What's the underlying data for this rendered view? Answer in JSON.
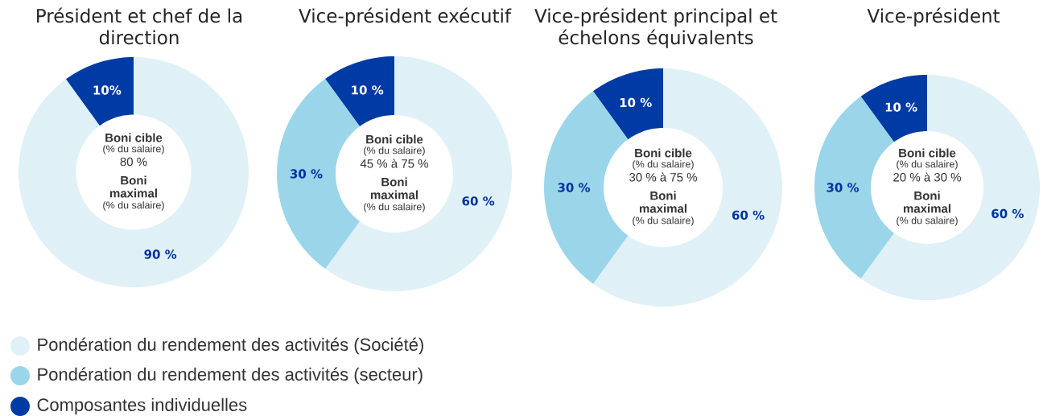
{
  "chart_data": [
    {
      "type": "donut",
      "title": "Président et chef de la direction",
      "categories": [
        "Pondération du rendement des activités (Société)",
        "Pondération du rendement des activités (secteur)",
        "Composantes individuelles"
      ],
      "values": [
        90,
        0,
        10
      ],
      "colors": [
        "#dff1f7",
        "#9bd5e9",
        "#003ba5"
      ],
      "value_labels": [
        "90 %",
        null,
        "10%"
      ],
      "annotations": [
        "Boni cible",
        "(% du salaire)",
        "80 %",
        "Boni maximal",
        "(% du salaire)"
      ],
      "legend": "bottom"
    },
    {
      "type": "donut",
      "title": "Vice-président exécutif",
      "categories": [
        null,
        null,
        null
      ],
      "values": [
        60,
        30,
        10
      ],
      "colors": [
        "#dff1f7",
        "#9bd5e9",
        "#003ba5"
      ],
      "value_labels": [
        "60 %",
        "30 %",
        "10 %"
      ],
      "annotations": [
        "Boni cible",
        "(% du salaire)",
        "45 % à 75 %",
        "Boni maximal",
        "(% du salaire)"
      ]
    },
    {
      "type": "donut",
      "title": "Vice-président principal et échelons équivalents",
      "categories": [
        null,
        null,
        null
      ],
      "values": [
        60,
        30,
        10
      ],
      "colors": [
        "#dff1f7",
        "#9bd5e9",
        "#003ba5"
      ],
      "value_labels": [
        "60 %",
        "30 %",
        "10 %"
      ],
      "annotations": [
        "Boni cible",
        "(% du salaire)",
        "30 % à 75 %",
        "Boni maximal",
        "(% du salaire)"
      ]
    },
    {
      "type": "donut",
      "title": "Vice-président",
      "categories": [
        null,
        null,
        null
      ],
      "values": [
        60,
        30,
        10
      ],
      "colors": [
        "#dff1f7",
        "#9bd5e9",
        "#003ba5"
      ],
      "value_labels": [
        "60 %",
        "30 %",
        "10 %"
      ],
      "annotations": [
        "Boni cible",
        "(% du salaire)",
        "20 % à 30 %",
        "Boni maximal",
        "(% du salaire)"
      ]
    }
  ]
}
